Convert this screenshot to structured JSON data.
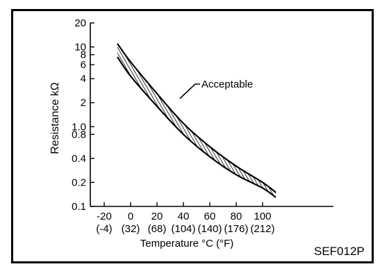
{
  "chart_data": {
    "type": "line",
    "title": "",
    "xlabel": "Temperature °C (°F)",
    "ylabel": "Resistance kΩ",
    "y_scale": "log",
    "ylim": [
      0.1,
      20
    ],
    "xlim": [
      -30,
      120
    ],
    "y_ticks": [
      {
        "value": 20,
        "label": "20"
      },
      {
        "value": 10,
        "label": "10"
      },
      {
        "value": 8,
        "label": "8"
      },
      {
        "value": 6,
        "label": "6"
      },
      {
        "value": 4,
        "label": "4"
      },
      {
        "value": 2,
        "label": "2"
      },
      {
        "value": 1.0,
        "label": "1.0"
      },
      {
        "value": 0.8,
        "label": "0.8"
      },
      {
        "value": 0.4,
        "label": "0.4"
      },
      {
        "value": 0.2,
        "label": "0.2"
      },
      {
        "value": 0.1,
        "label": "0.1"
      }
    ],
    "x_ticks": [
      {
        "value": -20,
        "label": "-20",
        "label2": "(-4)"
      },
      {
        "value": 0,
        "label": "0",
        "label2": "(32)"
      },
      {
        "value": 20,
        "label": "20",
        "label2": "(68)"
      },
      {
        "value": 40,
        "label": "40",
        "label2": "(104)"
      },
      {
        "value": 60,
        "label": "60",
        "label2": "(140)"
      },
      {
        "value": 80,
        "label": "80",
        "label2": "(176)"
      },
      {
        "value": 100,
        "label": "100",
        "label2": "(212)"
      }
    ],
    "series": [
      {
        "x": [
          -10,
          0,
          20,
          40,
          60,
          80,
          100,
          110
        ],
        "values": [
          11,
          6.5,
          2.6,
          1.1,
          0.56,
          0.32,
          0.2,
          0.15
        ]
      },
      {
        "x": [
          -10,
          0,
          20,
          40,
          60,
          80,
          100,
          110
        ],
        "values": [
          7.5,
          4.3,
          1.8,
          0.8,
          0.42,
          0.25,
          0.17,
          0.13
        ]
      }
    ],
    "band_label": "Acceptable",
    "annotation": {
      "text": "Acceptable",
      "target_x": 30,
      "target_y": 2.0
    },
    "grid": false
  },
  "figure_code": "SEF012P"
}
